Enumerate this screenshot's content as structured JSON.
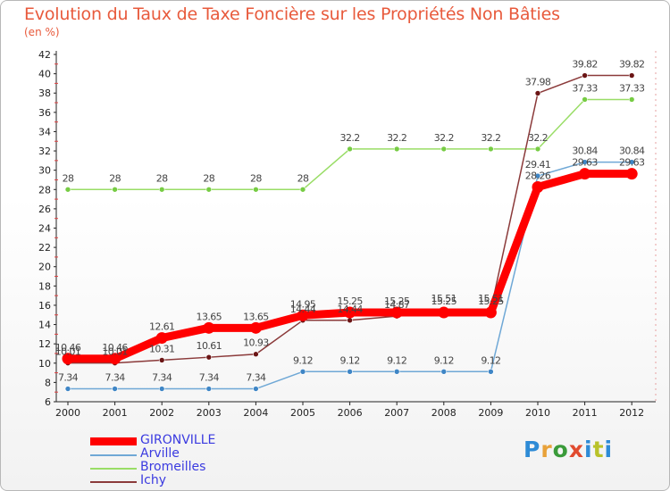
{
  "header": {
    "title": "Evolution du Taux de Taxe Foncière sur les Propriétés Non Bâties",
    "subtitle": "(en %)"
  },
  "brand": {
    "text": "Proxiti",
    "letters": [
      "P",
      "r",
      "o",
      "x",
      "i",
      "t",
      "i"
    ],
    "colors": [
      "#2e8bd6",
      "#e8a23a",
      "#3a9b3a",
      "#e14b2f",
      "#2e8bd6",
      "#b9c22a",
      "#2e8bd6"
    ]
  },
  "chart_data": {
    "type": "line",
    "title": "Evolution du Taux de Taxe Foncière sur les Propriétés Non Bâties",
    "ylabel": "(en %)",
    "xlabel": "",
    "ylim": [
      6,
      42
    ],
    "yticks": [
      6,
      8,
      10,
      12,
      14,
      16,
      18,
      20,
      22,
      24,
      26,
      28,
      30,
      32,
      34,
      36,
      38,
      40,
      42
    ],
    "categories": [
      "2000",
      "2001",
      "2002",
      "2003",
      "2004",
      "2005",
      "2006",
      "2007",
      "2008",
      "2009",
      "2010",
      "2011",
      "2012"
    ],
    "grid": false,
    "legend_position": "bottom-left",
    "series": [
      {
        "name": "GIRONVILLE",
        "color": "#ff0000",
        "marker_color": "#ff0000",
        "emphasis": true,
        "values": [
          10.46,
          10.46,
          12.61,
          13.65,
          13.65,
          14.95,
          15.25,
          15.25,
          15.25,
          15.25,
          28.26,
          29.63,
          29.63
        ],
        "labels": [
          "10.46",
          "10.46",
          "12.61",
          "13.65",
          "13.65",
          "14.95",
          "15.25",
          "15.25",
          "15.25",
          "15.25",
          "28.26",
          "29.63",
          "29.63"
        ]
      },
      {
        "name": "Arville",
        "color": "#6fa8d6",
        "marker_color": "#3f86c6",
        "emphasis": false,
        "values": [
          7.34,
          7.34,
          7.34,
          7.34,
          7.34,
          9.12,
          9.12,
          9.12,
          9.12,
          9.12,
          29.41,
          30.84,
          30.84
        ],
        "labels": [
          "7.34",
          "7.34",
          "7.34",
          "7.34",
          "7.34",
          "9.12",
          "9.12",
          "9.12",
          "9.12",
          "9.12",
          "29.41",
          "30.84",
          "30.84"
        ]
      },
      {
        "name": "Bromeilles",
        "color": "#99dd66",
        "marker_color": "#77cc44",
        "emphasis": false,
        "values": [
          28,
          28,
          28,
          28,
          28,
          28,
          32.2,
          32.2,
          32.2,
          32.2,
          32.2,
          37.33,
          37.33
        ],
        "labels": [
          "28",
          "28",
          "28",
          "28",
          "28",
          "28",
          "32.2",
          "32.2",
          "32.2",
          "32.2",
          "32.2",
          "37.33",
          "37.33"
        ]
      },
      {
        "name": "Ichy",
        "color": "#8b3a3a",
        "marker_color": "#6b1515",
        "emphasis": false,
        "values": [
          10.01,
          10.01,
          10.31,
          10.61,
          10.93,
          14.44,
          14.44,
          14.87,
          15.51,
          15.51,
          37.98,
          39.82,
          39.82
        ],
        "labels": [
          "10.01",
          "10.01",
          "10.31",
          "10.61",
          "10.93",
          "14.44",
          "14.44",
          "14.87",
          "15.51",
          "15.51",
          "37.98",
          "39.82",
          "39.82"
        ]
      }
    ]
  }
}
